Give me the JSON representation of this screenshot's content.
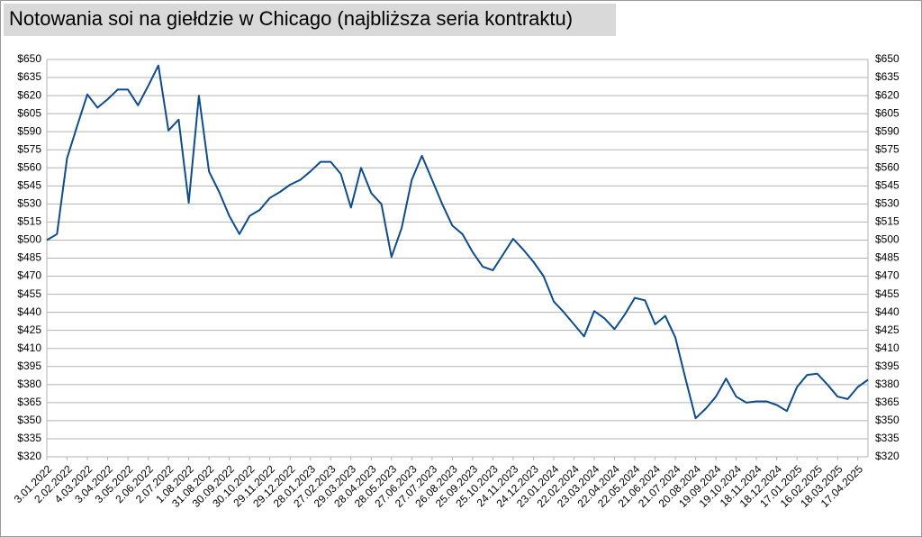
{
  "chart_data": {
    "type": "line",
    "title": "Notowania soi na giełdzie w Chicago (najbliższa seria kontraktu)",
    "categories": [
      "3.01.2022",
      null,
      "2.02.2022",
      null,
      "4.03.2022",
      null,
      "3.04.2022",
      null,
      "3.05.2022",
      null,
      "2.06.2022",
      null,
      "2.07.2022",
      null,
      "1.08.2022",
      null,
      "31.08.2022",
      null,
      "30.09.2022",
      null,
      "30.10.2022",
      null,
      "29.11.2022",
      null,
      "29.12.2022",
      null,
      "28.01.2023",
      null,
      "27.02.2023",
      null,
      "29.03.2023",
      null,
      "28.04.2023",
      null,
      "28.05.2023",
      null,
      "27.06.2023",
      null,
      "27.07.2023",
      null,
      "26.08.2023",
      null,
      "25.09.2023",
      null,
      "25.10.2023",
      null,
      "24.11.2023",
      null,
      "24.12.2023",
      null,
      "23.01.2024",
      null,
      "22.02.2024",
      null,
      "23.03.2024",
      null,
      "22.04.2024",
      null,
      "22.05.2024",
      null,
      "21.06.2024",
      null,
      "21.07.2024",
      null,
      "20.08.2024",
      null,
      "19.09.2024",
      null,
      "19.10.2024",
      null,
      "18.11.2024",
      null,
      "18.12.2024",
      null,
      "17.01.2025",
      null,
      "16.02.2025",
      null,
      "18.03.2025",
      null,
      "17.04.2025",
      null
    ],
    "values": [
      500,
      505,
      568,
      595,
      621,
      610,
      617,
      625,
      625,
      612,
      628,
      645,
      591,
      600,
      531,
      620,
      557,
      540,
      520,
      505,
      520,
      525,
      535,
      540,
      546,
      550,
      557,
      565,
      565,
      555,
      527,
      560,
      539,
      530,
      486,
      510,
      550,
      570,
      550,
      530,
      512,
      505,
      490,
      478,
      475,
      488,
      501,
      492,
      482,
      470,
      449,
      440,
      430,
      420,
      441,
      435,
      426,
      438,
      452,
      450,
      430,
      437,
      419,
      385,
      352,
      360,
      370,
      385,
      370,
      365,
      366,
      366,
      363,
      358,
      378,
      388,
      389,
      380,
      370,
      368,
      378,
      384
    ],
    "color": "#0f4c8a",
    "ylim": [
      320,
      650
    ],
    "yticks": [
      {
        "value": 320,
        "label": "$320"
      },
      {
        "value": 335,
        "label": "$335"
      },
      {
        "value": 350,
        "label": "$350"
      },
      {
        "value": 365,
        "label": "$365"
      },
      {
        "value": 380,
        "label": "$380"
      },
      {
        "value": 395,
        "label": "$395"
      },
      {
        "value": 410,
        "label": "$410"
      },
      {
        "value": 425,
        "label": "$425"
      },
      {
        "value": 440,
        "label": "$440"
      },
      {
        "value": 455,
        "label": "$455"
      },
      {
        "value": 470,
        "label": "$470"
      },
      {
        "value": 485,
        "label": "$485"
      },
      {
        "value": 500,
        "label": "$500"
      },
      {
        "value": 515,
        "label": "$515"
      },
      {
        "value": 530,
        "label": "$530"
      },
      {
        "value": 545,
        "label": "$545"
      },
      {
        "value": 560,
        "label": "$560"
      },
      {
        "value": 575,
        "label": "$575"
      },
      {
        "value": 590,
        "label": "$590"
      },
      {
        "value": 605,
        "label": "$605"
      },
      {
        "value": 620,
        "label": "$620"
      },
      {
        "value": 635,
        "label": "$635"
      },
      {
        "value": 650,
        "label": "$650"
      }
    ],
    "grid": true
  }
}
